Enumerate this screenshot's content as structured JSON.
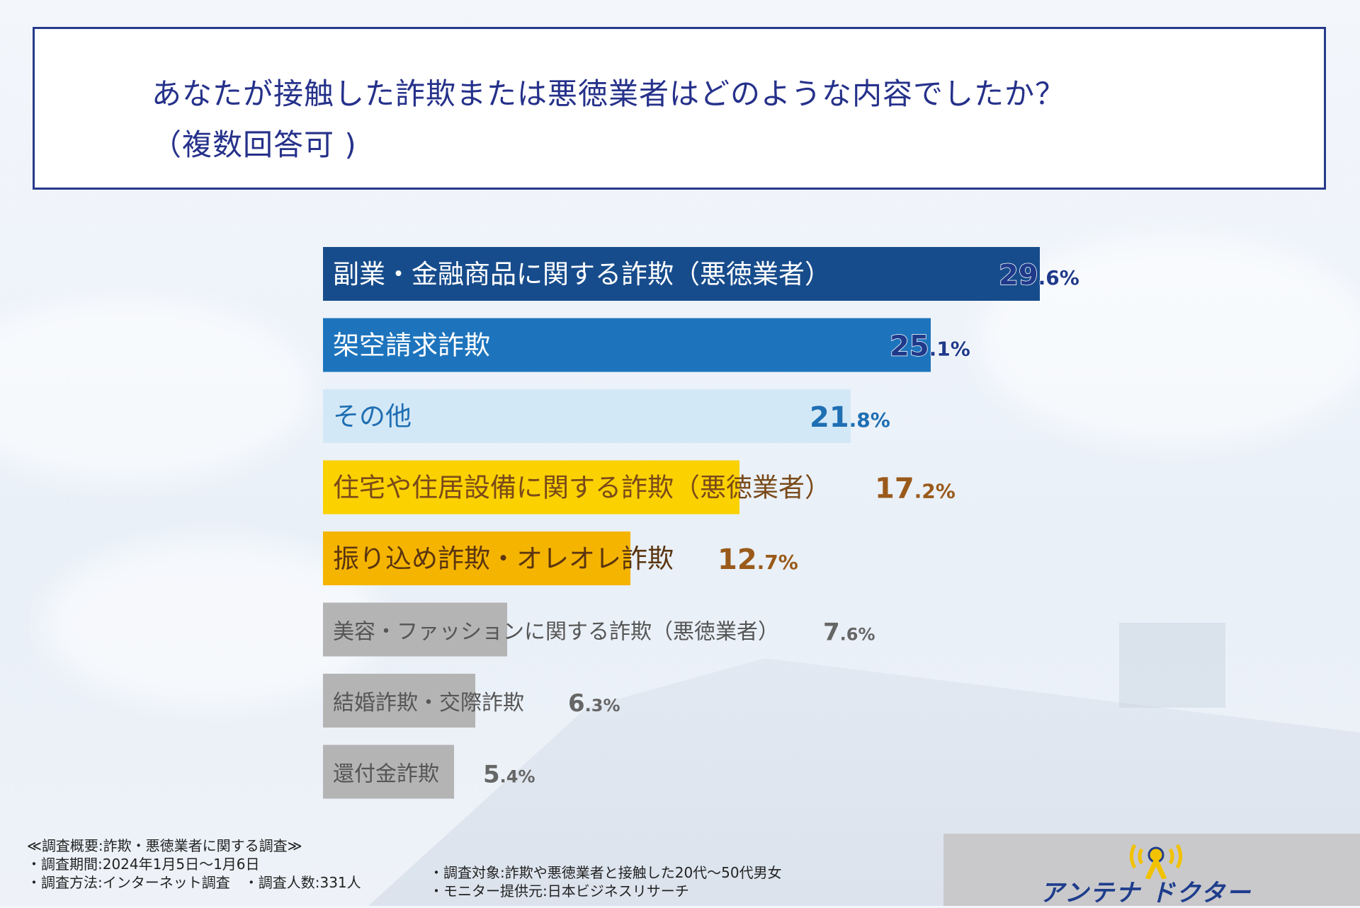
{
  "title": {
    "line1": "あなたが接触した詐欺または悪徳業者はどのような内容でしたか？",
    "line2": "（複数回答可 )"
  },
  "chart_data": {
    "type": "bar",
    "orientation": "horizontal",
    "unit": "%",
    "categories": [
      "副業・金融商品に関する詐欺（悪徳業者）",
      "架空請求詐欺",
      "その他",
      "住宅や住居設備に関する詐欺（悪徳業者）",
      "振り込め詐欺・オレオレ詐欺",
      "美容・ファッションに関する詐欺（悪徳業者）",
      "結婚詐欺・交際詐欺",
      "還付金詐欺"
    ],
    "values": [
      29.6,
      25.1,
      21.8,
      17.2,
      12.7,
      7.6,
      6.3,
      5.4
    ],
    "value_labels": [
      {
        "int": "29",
        "dec": ".6%"
      },
      {
        "int": "25",
        "dec": ".1%"
      },
      {
        "int": "21",
        "dec": ".8%"
      },
      {
        "int": "17",
        "dec": ".2%"
      },
      {
        "int": "12",
        "dec": ".7%"
      },
      {
        "int": "7",
        "dec": ".6%"
      },
      {
        "int": "6",
        "dec": ".3%"
      },
      {
        "int": "5",
        "dec": ".4%"
      }
    ],
    "bar_colors": [
      "#174c8c",
      "#1d74bd",
      "#d3e8f6",
      "#fbd100",
      "#f5b400",
      "#b4b4b4",
      "#b4b4b4",
      "#b4b4b4"
    ],
    "label_colors": [
      "#ffffff",
      "#ffffff",
      "#1f6fb3",
      "#7a4a1a",
      "#5a3510",
      "#555555",
      "#555555",
      "#555555"
    ],
    "value_colors": [
      "#1f3a8a",
      "#1f3a8a",
      "#1f6fb3",
      "#9a5a1a",
      "#9a5a1a",
      "#666666",
      "#666666",
      "#666666"
    ],
    "xlim": [
      0,
      29.6
    ],
    "grid": false,
    "legend": "none"
  },
  "footer": {
    "summary": "≪調査概要:詐欺・悪徳業者に関する調査≫",
    "period": "・調査期間:2024年1月5日〜1月6日",
    "method": "・調査方法:インターネット調査　・調査人数:331人",
    "target": "・調査対象:詐欺や悪徳業者と接触した20代〜50代男女",
    "monitor": "・モニター提供元:日本ビジネスリサーチ"
  },
  "logo": {
    "text": "アンテナ ドクター",
    "icon": "antenna-doctor-logo-icon"
  },
  "colors": {
    "title_border": "#263a8a",
    "title_text": "#25318a"
  }
}
